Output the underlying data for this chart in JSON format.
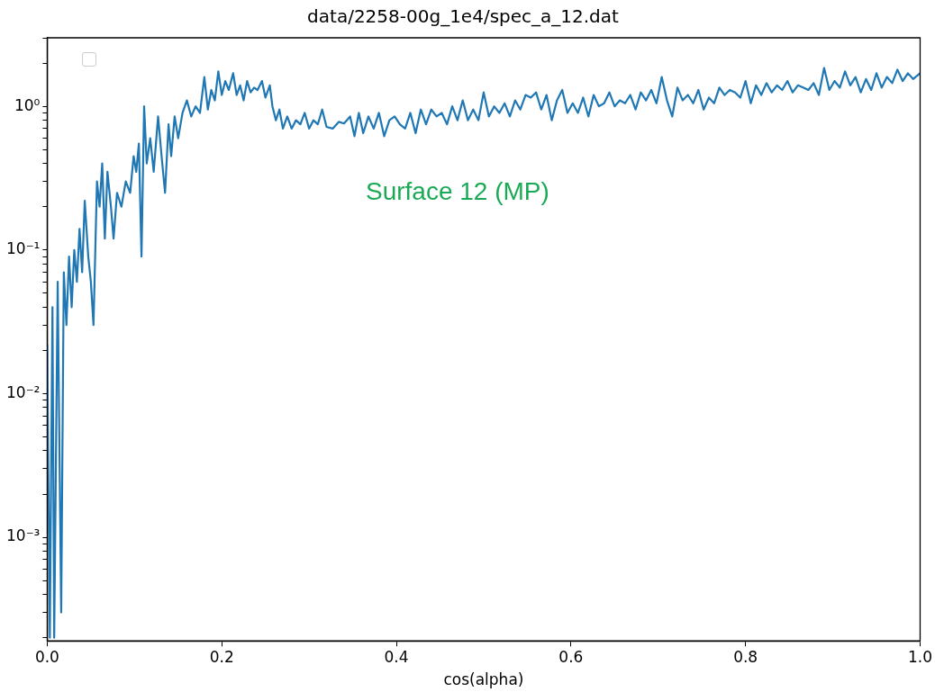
{
  "chart_data": {
    "type": "line",
    "title": "data/2258-00g_1e4/spec_a_12.dat",
    "xlabel": "cos(alpha)",
    "log": "y",
    "grid": false,
    "line_style": "solid",
    "marker": "none",
    "annotations": [
      "Surface 12 (MP)"
    ],
    "xlim": [
      0,
      1
    ],
    "xticks": [
      {
        "value": 0,
        "label": "0.0"
      },
      {
        "value": 0.2,
        "label": "0.2"
      },
      {
        "value": 0.4,
        "label": "0.4"
      },
      {
        "value": 0.6,
        "label": "0.6"
      },
      {
        "value": 0.8,
        "label": "0.8"
      },
      {
        "value": 1,
        "label": "1.0"
      }
    ],
    "ylim": [
      0.00019,
      3
    ],
    "yticks": [
      {
        "value": 0.0002,
        "label": null
      },
      {
        "value": 0.0003,
        "label": null
      },
      {
        "value": 0.0004,
        "label": null
      },
      {
        "value": 0.0005,
        "label": null
      },
      {
        "value": 0.0006,
        "label": null
      },
      {
        "value": 0.0007,
        "label": null
      },
      {
        "value": 0.0008,
        "label": null
      },
      {
        "value": 0.0009,
        "label": null
      },
      {
        "value": 0.001,
        "label": "10⁻³"
      },
      {
        "value": 0.002,
        "label": null
      },
      {
        "value": 0.003,
        "label": null
      },
      {
        "value": 0.004,
        "label": null
      },
      {
        "value": 0.005,
        "label": null
      },
      {
        "value": 0.006,
        "label": null
      },
      {
        "value": 0.007,
        "label": null
      },
      {
        "value": 0.008,
        "label": null
      },
      {
        "value": 0.009,
        "label": null
      },
      {
        "value": 0.01,
        "label": "10⁻²"
      },
      {
        "value": 0.02,
        "label": null
      },
      {
        "value": 0.03,
        "label": null
      },
      {
        "value": 0.04,
        "label": null
      },
      {
        "value": 0.05,
        "label": null
      },
      {
        "value": 0.06,
        "label": null
      },
      {
        "value": 0.07,
        "label": null
      },
      {
        "value": 0.08,
        "label": null
      },
      {
        "value": 0.09,
        "label": null
      },
      {
        "value": 0.1,
        "label": "10⁻¹"
      },
      {
        "value": 0.2,
        "label": null
      },
      {
        "value": 0.3,
        "label": null
      },
      {
        "value": 0.4,
        "label": null
      },
      {
        "value": 0.5,
        "label": null
      },
      {
        "value": 0.6,
        "label": null
      },
      {
        "value": 0.7,
        "label": null
      },
      {
        "value": 0.8,
        "label": null
      },
      {
        "value": 0.9,
        "label": null
      },
      {
        "value": 1,
        "label": "10⁰"
      },
      {
        "value": 2,
        "label": null
      },
      {
        "value": 3,
        "label": null
      }
    ],
    "series": [
      {
        "color": "#1f77b4",
        "x": [
          0,
          0.003,
          0.006,
          0.008,
          0.012,
          0.016,
          0.019,
          0.022,
          0.025,
          0.028,
          0.031,
          0.034,
          0.037,
          0.04,
          0.043,
          0.047,
          0.05,
          0.053,
          0.057,
          0.06,
          0.063,
          0.066,
          0.069,
          0.073,
          0.076,
          0.08,
          0.085,
          0.09,
          0.095,
          0.099,
          0.102,
          0.105,
          0.108,
          0.111,
          0.114,
          0.118,
          0.122,
          0.127,
          0.131,
          0.135,
          0.139,
          0.142,
          0.146,
          0.15,
          0.155,
          0.16,
          0.165,
          0.17,
          0.175,
          0.18,
          0.184,
          0.188,
          0.192,
          0.196,
          0.2,
          0.204,
          0.208,
          0.213,
          0.217,
          0.221,
          0.225,
          0.229,
          0.233,
          0.237,
          0.241,
          0.246,
          0.25,
          0.255,
          0.258,
          0.262,
          0.266,
          0.27,
          0.275,
          0.28,
          0.285,
          0.29,
          0.295,
          0.3,
          0.305,
          0.31,
          0.315,
          0.32,
          0.327,
          0.334,
          0.34,
          0.347,
          0.352,
          0.357,
          0.362,
          0.368,
          0.374,
          0.38,
          0.386,
          0.392,
          0.398,
          0.404,
          0.41,
          0.416,
          0.422,
          0.428,
          0.434,
          0.44,
          0.446,
          0.452,
          0.458,
          0.464,
          0.47,
          0.476,
          0.482,
          0.488,
          0.494,
          0.5,
          0.506,
          0.512,
          0.518,
          0.524,
          0.53,
          0.536,
          0.542,
          0.548,
          0.554,
          0.56,
          0.566,
          0.572,
          0.578,
          0.584,
          0.59,
          0.596,
          0.602,
          0.608,
          0.614,
          0.62,
          0.626,
          0.632,
          0.638,
          0.644,
          0.65,
          0.656,
          0.662,
          0.668,
          0.674,
          0.68,
          0.686,
          0.692,
          0.698,
          0.704,
          0.71,
          0.716,
          0.722,
          0.728,
          0.734,
          0.74,
          0.746,
          0.752,
          0.758,
          0.764,
          0.77,
          0.776,
          0.782,
          0.788,
          0.794,
          0.8,
          0.806,
          0.812,
          0.818,
          0.824,
          0.83,
          0.836,
          0.842,
          0.848,
          0.854,
          0.86,
          0.866,
          0.872,
          0.878,
          0.884,
          0.89,
          0.896,
          0.902,
          0.908,
          0.914,
          0.92,
          0.926,
          0.932,
          0.938,
          0.944,
          0.95,
          0.956,
          0.962,
          0.968,
          0.974,
          0.98,
          0.986,
          0.992,
          1
        ],
        "values": [
          0.022,
          0.0002,
          0.04,
          0.0002,
          0.06,
          0.0003,
          0.07,
          0.03,
          0.09,
          0.04,
          0.1,
          0.06,
          0.14,
          0.07,
          0.22,
          0.09,
          0.06,
          0.03,
          0.3,
          0.2,
          0.4,
          0.12,
          0.35,
          0.2,
          0.12,
          0.25,
          0.2,
          0.3,
          0.25,
          0.45,
          0.35,
          0.55,
          0.09,
          1.0,
          0.4,
          0.6,
          0.35,
          0.85,
          0.45,
          0.25,
          0.75,
          0.45,
          0.85,
          0.6,
          0.9,
          1.1,
          0.85,
          1.0,
          0.9,
          1.6,
          0.95,
          1.3,
          1.1,
          1.75,
          1.2,
          1.5,
          1.3,
          1.7,
          1.2,
          1.4,
          1.1,
          1.5,
          1.25,
          1.35,
          1.3,
          1.5,
          1.15,
          1.4,
          1.0,
          0.8,
          0.95,
          0.7,
          0.85,
          0.7,
          0.8,
          0.75,
          0.9,
          0.7,
          0.8,
          0.75,
          0.95,
          0.72,
          0.7,
          0.78,
          0.76,
          0.85,
          0.62,
          0.9,
          0.65,
          0.85,
          0.7,
          0.9,
          0.62,
          0.8,
          0.85,
          0.75,
          0.7,
          0.9,
          0.65,
          0.95,
          0.75,
          0.95,
          0.85,
          0.9,
          0.75,
          1.0,
          0.8,
          1.1,
          0.8,
          0.95,
          0.8,
          1.25,
          0.85,
          1.0,
          0.9,
          1.05,
          0.85,
          1.1,
          0.95,
          1.2,
          1.15,
          1.25,
          0.95,
          1.2,
          0.8,
          1.1,
          1.3,
          0.9,
          1.05,
          0.9,
          1.15,
          0.85,
          1.2,
          1.0,
          1.05,
          1.25,
          1.0,
          1.1,
          1.05,
          1.2,
          0.95,
          1.25,
          1.1,
          1.3,
          1.05,
          1.6,
          1.1,
          0.85,
          1.35,
          1.1,
          1.2,
          1.05,
          1.3,
          0.95,
          1.15,
          1.05,
          1.35,
          1.2,
          1.3,
          1.25,
          1.15,
          1.5,
          1.05,
          1.4,
          1.2,
          1.45,
          1.25,
          1.4,
          1.3,
          1.5,
          1.25,
          1.4,
          1.35,
          1.3,
          1.45,
          1.2,
          1.85,
          1.3,
          1.5,
          1.35,
          1.75,
          1.4,
          1.6,
          1.25,
          1.55,
          1.3,
          1.7,
          1.35,
          1.6,
          1.45,
          1.8,
          1.5,
          1.7,
          1.55,
          1.7
        ]
      }
    ]
  }
}
